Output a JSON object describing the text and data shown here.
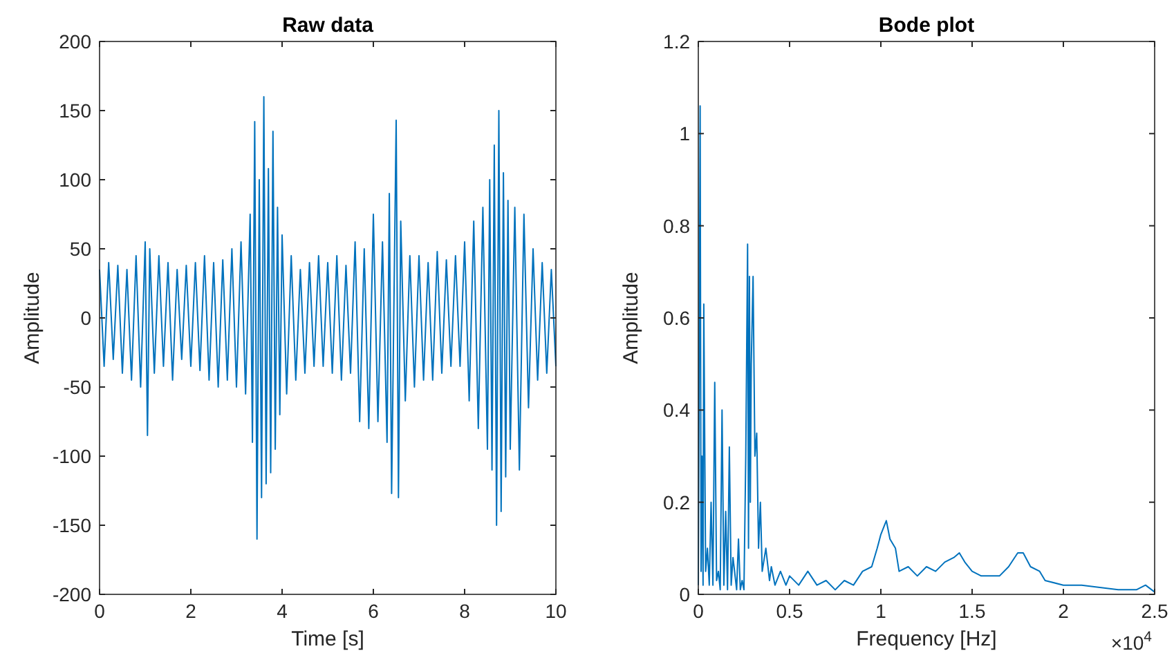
{
  "chart_data": [
    {
      "type": "line",
      "title": "Raw data",
      "xlabel": "Time [s]",
      "ylabel": "Amplitude",
      "xlim": [
        0,
        10
      ],
      "ylim": [
        -200,
        200
      ],
      "xticks": [
        0,
        2,
        4,
        6,
        8,
        10
      ],
      "yticks": [
        -200,
        -150,
        -100,
        -50,
        0,
        50,
        100,
        150,
        200
      ],
      "grid": false,
      "series": [
        {
          "color": "#0072bd",
          "x": [
            0,
            0.1,
            0.2,
            0.3,
            0.4,
            0.5,
            0.6,
            0.7,
            0.8,
            0.9,
            1.0,
            1.05,
            1.1,
            1.2,
            1.3,
            1.4,
            1.5,
            1.6,
            1.7,
            1.8,
            1.9,
            2.0,
            2.1,
            2.2,
            2.3,
            2.4,
            2.5,
            2.6,
            2.7,
            2.8,
            2.9,
            3.0,
            3.1,
            3.2,
            3.3,
            3.35,
            3.4,
            3.45,
            3.5,
            3.55,
            3.6,
            3.65,
            3.7,
            3.75,
            3.8,
            3.85,
            3.9,
            3.95,
            4.0,
            4.1,
            4.2,
            4.3,
            4.4,
            4.5,
            4.6,
            4.7,
            4.8,
            4.9,
            5.0,
            5.1,
            5.2,
            5.3,
            5.4,
            5.5,
            5.6,
            5.7,
            5.8,
            5.9,
            6.0,
            6.1,
            6.2,
            6.3,
            6.35,
            6.4,
            6.5,
            6.55,
            6.6,
            6.7,
            6.8,
            6.9,
            7.0,
            7.1,
            7.2,
            7.3,
            7.4,
            7.5,
            7.6,
            7.7,
            7.8,
            7.9,
            8.0,
            8.1,
            8.2,
            8.3,
            8.4,
            8.5,
            8.55,
            8.6,
            8.65,
            8.7,
            8.75,
            8.8,
            8.85,
            8.9,
            8.95,
            9.0,
            9.1,
            9.2,
            9.3,
            9.4,
            9.5,
            9.6,
            9.7,
            9.8,
            9.9,
            10.0
          ],
          "values": [
            35,
            -35,
            40,
            -30,
            38,
            -40,
            35,
            -45,
            45,
            -50,
            55,
            -85,
            50,
            -40,
            45,
            -35,
            40,
            -45,
            35,
            -30,
            38,
            -35,
            40,
            -38,
            45,
            -45,
            40,
            -50,
            42,
            -45,
            50,
            -50,
            55,
            -55,
            75,
            -90,
            142,
            -160,
            100,
            -130,
            160,
            -120,
            108,
            -112,
            135,
            -95,
            80,
            -70,
            60,
            -55,
            45,
            -45,
            35,
            -40,
            40,
            -35,
            45,
            -35,
            40,
            -40,
            45,
            -45,
            38,
            -40,
            55,
            -75,
            50,
            -80,
            75,
            -75,
            55,
            -90,
            90,
            -127,
            143,
            -130,
            70,
            -60,
            45,
            -50,
            45,
            -45,
            40,
            -45,
            48,
            -40,
            42,
            -35,
            45,
            -35,
            55,
            -60,
            70,
            -80,
            80,
            -95,
            100,
            -110,
            125,
            -150,
            150,
            -140,
            105,
            -115,
            85,
            -95,
            80,
            -110,
            75,
            -65,
            50,
            -45,
            40,
            -40,
            35,
            -35
          ]
        }
      ]
    },
    {
      "type": "line",
      "title": "Bode plot",
      "xlabel": "Frequency [Hz]",
      "ylabel": "Amplitude",
      "xlim": [
        0,
        2.5
      ],
      "ylim": [
        0,
        1.2
      ],
      "xticks": [
        0,
        0.5,
        1,
        1.5,
        2,
        2.5
      ],
      "yticks": [
        0,
        0.2,
        0.4,
        0.6,
        0.8,
        1,
        1.2
      ],
      "grid": false,
      "annotations": [
        "×10$^{4}$"
      ],
      "series": [
        {
          "color": "#0072bd",
          "x": [
            0,
            0.006,
            0.01,
            0.015,
            0.02,
            0.026,
            0.03,
            0.04,
            0.05,
            0.06,
            0.07,
            0.08,
            0.09,
            0.1,
            0.11,
            0.12,
            0.13,
            0.14,
            0.15,
            0.16,
            0.17,
            0.18,
            0.19,
            0.21,
            0.22,
            0.23,
            0.24,
            0.25,
            0.26,
            0.27,
            0.275,
            0.28,
            0.285,
            0.29,
            0.3,
            0.31,
            0.32,
            0.33,
            0.34,
            0.35,
            0.37,
            0.39,
            0.4,
            0.42,
            0.45,
            0.48,
            0.5,
            0.55,
            0.6,
            0.65,
            0.7,
            0.75,
            0.8,
            0.85,
            0.9,
            0.95,
            0.98,
            1.0,
            1.03,
            1.05,
            1.08,
            1.1,
            1.15,
            1.2,
            1.25,
            1.3,
            1.35,
            1.4,
            1.43,
            1.46,
            1.5,
            1.55,
            1.6,
            1.65,
            1.7,
            1.75,
            1.78,
            1.82,
            1.87,
            1.9,
            2.0,
            2.1,
            2.2,
            2.3,
            2.4,
            2.45,
            2.5
          ],
          "values": [
            0.02,
            0.6,
            1.06,
            0.05,
            0.3,
            0.02,
            0.63,
            0.05,
            0.1,
            0.02,
            0.2,
            0.02,
            0.46,
            0.03,
            0.05,
            0.01,
            0.4,
            0.02,
            0.18,
            0.01,
            0.32,
            0.02,
            0.08,
            0.01,
            0.12,
            0.01,
            0.03,
            0.01,
            0.3,
            0.76,
            0.1,
            0.69,
            0.2,
            0.5,
            0.69,
            0.3,
            0.35,
            0.1,
            0.2,
            0.05,
            0.1,
            0.03,
            0.06,
            0.02,
            0.05,
            0.02,
            0.04,
            0.02,
            0.05,
            0.02,
            0.03,
            0.01,
            0.03,
            0.02,
            0.05,
            0.06,
            0.1,
            0.13,
            0.16,
            0.12,
            0.1,
            0.05,
            0.06,
            0.04,
            0.06,
            0.05,
            0.07,
            0.08,
            0.09,
            0.07,
            0.05,
            0.04,
            0.04,
            0.04,
            0.06,
            0.09,
            0.09,
            0.06,
            0.05,
            0.03,
            0.02,
            0.02,
            0.015,
            0.01,
            0.01,
            0.02,
            0.005
          ]
        }
      ]
    }
  ]
}
